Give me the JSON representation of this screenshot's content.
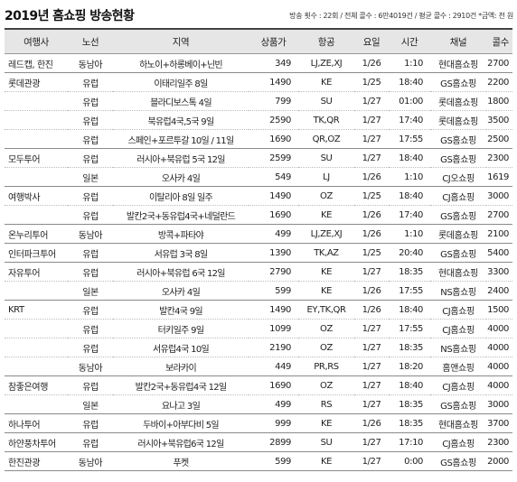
{
  "header": {
    "title": "2019년 홈쇼핑 방송현황",
    "meta": "방송 횟수 : 22회 / 전체 콜수 : 6만4019건 / 평균 콜수 : 2910건 *금액: 천 원"
  },
  "table": {
    "columns": [
      "여행사",
      "노선",
      "지역",
      "상품가",
      "항공",
      "요일",
      "시간",
      "채널",
      "콜수"
    ],
    "groups": [
      {
        "agency": "레드캡, 한진",
        "rows": [
          [
            "동남아",
            "하노이+하롱베이+닌빈",
            "349",
            "LJ,ZE,XJ",
            "1/26",
            "1:10",
            "현대홈쇼핑",
            "2700"
          ]
        ]
      },
      {
        "agency": "롯데관광",
        "rows": [
          [
            "유럽",
            "이태리일주 8일",
            "1490",
            "KE",
            "1/25",
            "18:40",
            "GS홈쇼핑",
            "2200"
          ],
          [
            "유럽",
            "블라디보스톡 4일",
            "799",
            "SU",
            "1/27",
            "01:00",
            "롯데홈쇼핑",
            "1800"
          ],
          [
            "유럽",
            "북유럽4국,5국 9일",
            "2590",
            "TK,QR",
            "1/27",
            "17:40",
            "롯데홈쇼핑",
            "3500"
          ],
          [
            "유럽",
            "스페인+포르투갈 10일 / 11일",
            "1690",
            "QR,OZ",
            "1/27",
            "17:55",
            "GS홈쇼핑",
            "2500"
          ]
        ]
      },
      {
        "agency": "모두투어",
        "rows": [
          [
            "유럽",
            "러시아+북유럽 5국 12일",
            "2599",
            "SU",
            "1/27",
            "18:40",
            "GS홈쇼핑",
            "2300"
          ],
          [
            "일본",
            "오사카 4일",
            "549",
            "LJ",
            "1/26",
            "1:10",
            "CJ오쇼핑",
            "1619"
          ]
        ]
      },
      {
        "agency": "여행박사",
        "rows": [
          [
            "유럽",
            "이탈리아 8일 일주",
            "1490",
            "OZ",
            "1/25",
            "18:40",
            "CJ홈쇼핑",
            "3000"
          ],
          [
            "유럽",
            "발칸2국+동유럽4국+네덜란드",
            "1690",
            "KE",
            "1/26",
            "17:40",
            "GS홈쇼핑",
            "2700"
          ]
        ]
      },
      {
        "agency": "온누리투어",
        "rows": [
          [
            "동남아",
            "방콕+파타야",
            "499",
            "LJ,ZE,XJ",
            "1/26",
            "1:10",
            "롯데홈쇼핑",
            "2100"
          ]
        ]
      },
      {
        "agency": "인터파크투어",
        "rows": [
          [
            "유럽",
            "서유럽 3국 8일",
            "1390",
            "TK,AZ",
            "1/25",
            "20:40",
            "GS홈쇼핑",
            "5400"
          ]
        ]
      },
      {
        "agency": "자유투어",
        "rows": [
          [
            "유럽",
            "러시아+북유럽 6국 12일",
            "2790",
            "KE",
            "1/27",
            "18:35",
            "현대홈쇼핑",
            "3300"
          ],
          [
            "일본",
            "오사카 4일",
            "599",
            "KE",
            "1/26",
            "17:55",
            "NS홈쇼핑",
            "2400"
          ]
        ]
      },
      {
        "agency": "KRT",
        "rows": [
          [
            "유럽",
            "발칸4국 9일",
            "1490",
            "EY,TK,QR",
            "1/26",
            "18:40",
            "CJ홈쇼핑",
            "1500"
          ],
          [
            "유럽",
            "터키일주 9일",
            "1099",
            "OZ",
            "1/27",
            "17:55",
            "CJ홈쇼핑",
            "4000"
          ],
          [
            "유럽",
            "서유럽4국 10일",
            "2190",
            "OZ",
            "1/27",
            "18:35",
            "NS홈쇼핑",
            "4000"
          ],
          [
            "동남아",
            "보라카이",
            "449",
            "PR,RS",
            "1/27",
            "18:20",
            "홈앤쇼핑",
            "4000"
          ]
        ]
      },
      {
        "agency": "참좋은여행",
        "rows": [
          [
            "유럽",
            "발칸2국+동유럽4국 12일",
            "1690",
            "OZ",
            "1/27",
            "18:40",
            "CJ홈쇼핑",
            "4000"
          ],
          [
            "일본",
            "요나고 3일",
            "499",
            "RS",
            "1/27",
            "18:35",
            "GS홈쇼핑",
            "3000"
          ]
        ]
      },
      {
        "agency": "하나투어",
        "rows": [
          [
            "유럽",
            "두바이+아부다비 5일",
            "999",
            "KE",
            "1/26",
            "18:35",
            "현대홈쇼핑",
            "3700"
          ]
        ]
      },
      {
        "agency": "하얀풍차투어",
        "rows": [
          [
            "유럽",
            "러시아+북유럽6국 12일",
            "2899",
            "SU",
            "1/27",
            "17:10",
            "CJ홈쇼핑",
            "2300"
          ]
        ]
      },
      {
        "agency": "한진관광",
        "rows": [
          [
            "동남아",
            "푸켓",
            "599",
            "KE",
            "1/27",
            "0:00",
            "GS홈쇼핑",
            "2000"
          ]
        ]
      }
    ]
  }
}
